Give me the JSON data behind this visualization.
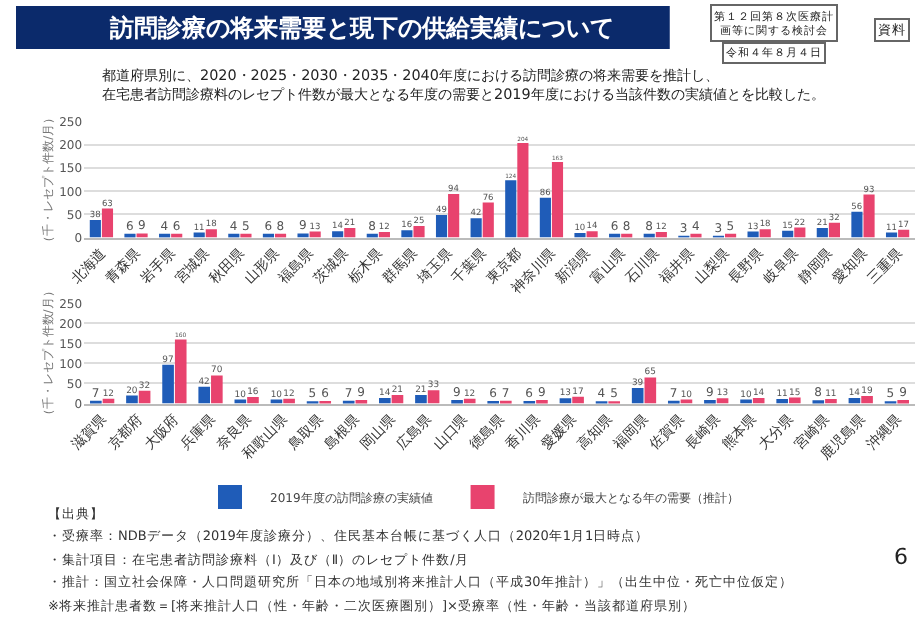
{
  "chart_data": [
    {
      "type": "bar",
      "title": "訪問診療の将来需要と現下の供給実績について",
      "subtitle": "都道府県別に、2020・2025・2030・2035・2040年度における訪問診療の将来需要を推計し、在宅患者訪問診療料のレセプト件数が最大となる年度の需要と2019年度における当該件数の実績値とを比較した。",
      "ylabel": "（千・レセプト件数/月）",
      "annotations": [
        "第１２回第８次医療計画等に関する検討会",
        "令和４年８月４日",
        "資料",
        "6"
      ],
      "categories": [
        "北海道",
        "青森県",
        "岩手県",
        "宮城県",
        "秋田県",
        "山形県",
        "福島県",
        "茨城県",
        "栃木県",
        "群馬県",
        "埼玉県",
        "千葉県",
        "東京都",
        "神奈川県",
        "新潟県",
        "富山県",
        "石川県",
        "福井県",
        "山梨県",
        "長野県",
        "岐阜県",
        "静岡県",
        "愛知県",
        "三重県"
      ],
      "series": [
        {
          "color": "#1f5cb8",
          "values": [
            38,
            6,
            4,
            11,
            4,
            6,
            9,
            14,
            8,
            16,
            49,
            42,
            124,
            86,
            10,
            6,
            8,
            3,
            3,
            13,
            15,
            21,
            56,
            11
          ]
        },
        {
          "color": "#e8436e",
          "values": [
            63,
            9,
            6,
            18,
            5,
            8,
            13,
            21,
            12,
            25,
            94,
            76,
            204,
            163,
            14,
            8,
            12,
            4,
            5,
            18,
            22,
            32,
            93,
            17
          ]
        }
      ],
      "ylim": [
        0,
        250
      ],
      "yticks": [
        0,
        50,
        100,
        150,
        200,
        250
      ],
      "grid": "y",
      "data_labels": true,
      "legend": false
    },
    {
      "type": "bar",
      "ylabel": "（千・レセプト件数/月）",
      "annotations": [
        "【出典】",
        "・受療率：NDBデータ（2019年度診療分）、住民基本台帳に基づく人口（2020年1月1日時点）",
        "・集計項目：在宅患者訪問診療料（Ⅰ）及び（Ⅱ）のレセプト件数/月",
        "・推計：国立社会保障・人口問題研究所「日本の地域別将来推計人口（平成30年推計）」（出生中位・死亡中位仮定）",
        "※将来推計患者数＝[将来推計人口（性・年齢・二次医療圏別）]×受療率（性・年齢・当該都道府県別）"
      ],
      "categories": [
        "滋賀県",
        "京都府",
        "大阪府",
        "兵庫県",
        "奈良県",
        "和歌山県",
        "鳥取県",
        "島根県",
        "岡山県",
        "広島県",
        "山口県",
        "徳島県",
        "香川県",
        "愛媛県",
        "高知県",
        "福岡県",
        "佐賀県",
        "長崎県",
        "熊本県",
        "大分県",
        "宮崎県",
        "鹿児島県",
        "沖縄県"
      ],
      "series": [
        {
          "name": "2019年度の訪問診療の実績値",
          "color": "#1f5cb8",
          "values": [
            7,
            20,
            97,
            42,
            10,
            10,
            5,
            7,
            14,
            21,
            9,
            6,
            6,
            13,
            4,
            39,
            7,
            9,
            10,
            11,
            8,
            14,
            5
          ]
        },
        {
          "name": "訪問診療が最大となる年の需要（推計）",
          "color": "#e8436e",
          "values": [
            12,
            32,
            160,
            70,
            16,
            12,
            6,
            9,
            21,
            33,
            12,
            7,
            9,
            17,
            5,
            65,
            10,
            13,
            14,
            15,
            11,
            19,
            9
          ]
        }
      ],
      "ylim": [
        0,
        250
      ],
      "yticks": [
        0,
        50,
        100,
        150,
        200,
        250
      ],
      "grid": "y",
      "data_labels": true,
      "legend": "bottom"
    }
  ]
}
